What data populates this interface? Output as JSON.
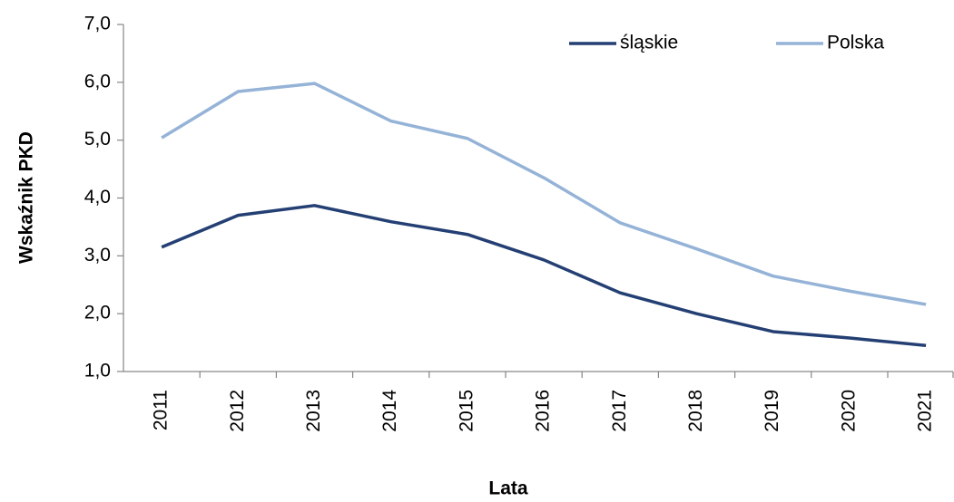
{
  "chart_data": {
    "type": "line",
    "y_label": "Wskaźnik PKD",
    "x_label": "Lata",
    "categories": [
      "2011",
      "2012",
      "2013",
      "2014",
      "2015",
      "2016",
      "2017",
      "2018",
      "2019",
      "2020",
      "2021"
    ],
    "series": [
      {
        "name": "śląskie",
        "color": "#243f73",
        "values": [
          3.15,
          3.7,
          3.87,
          3.59,
          3.37,
          2.93,
          2.36,
          2.0,
          1.69,
          1.58,
          1.45
        ]
      },
      {
        "name": "Polska",
        "color": "#95b3d7",
        "values": [
          5.04,
          5.84,
          5.98,
          5.33,
          5.03,
          4.35,
          3.57,
          3.12,
          2.65,
          2.39,
          2.16
        ]
      }
    ],
    "ylim": [
      1,
      7
    ],
    "yticks": [
      {
        "value": 1,
        "label": "1,0"
      },
      {
        "value": 2,
        "label": "2,0"
      },
      {
        "value": 3,
        "label": "3,0"
      },
      {
        "value": 4,
        "label": "4,0"
      },
      {
        "value": 5,
        "label": "5,0"
      },
      {
        "value": 6,
        "label": "6,0"
      },
      {
        "value": 7,
        "label": "7,0"
      }
    ],
    "grid": false,
    "legend": "top-right"
  }
}
